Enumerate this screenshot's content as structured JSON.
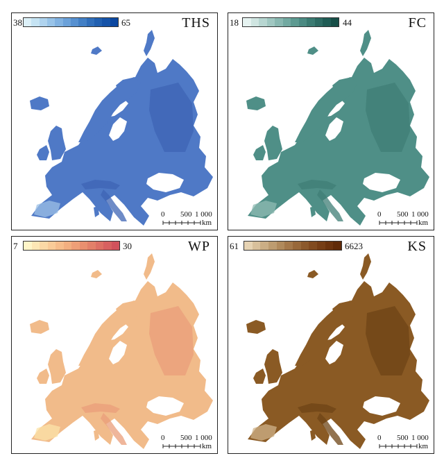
{
  "panels": [
    {
      "title": "THS",
      "legend_min": "38",
      "legend_max": "65",
      "colors": [
        "#dcf0f8",
        "#c5e3f3",
        "#afd3ee",
        "#98c3e8",
        "#81b2e1",
        "#6ba1d9",
        "#5690d0",
        "#427fc5",
        "#306eba",
        "#2160b0",
        "#1553a8",
        "#0b47a0"
      ],
      "map_fill": "#4f79c6",
      "map_dark": "#3d64b4",
      "map_light": "#9cc0e6",
      "scale_ticks": [
        "0",
        "500",
        "1 000"
      ],
      "scale_unit": "km"
    },
    {
      "title": "FC",
      "legend_min": "18",
      "legend_max": "44",
      "colors": [
        "#e6f3f1",
        "#cfe5e1",
        "#b7d6d1",
        "#a0c7c1",
        "#89b8b1",
        "#72a9a1",
        "#5d9a91",
        "#4b8a82",
        "#3b7b72",
        "#2d6b63",
        "#205c55",
        "#164e47"
      ],
      "map_fill": "#4f8f87",
      "map_dark": "#3f7d75",
      "map_light": "#8fbbb3",
      "scale_ticks": [
        "0",
        "500",
        "1 000"
      ],
      "scale_unit": "km"
    },
    {
      "title": "WP",
      "legend_min": "7",
      "legend_max": "30",
      "colors": [
        "#fff5c8",
        "#fde7b5",
        "#fbd9a6",
        "#f9cb98",
        "#f6bd8b",
        "#f2af80",
        "#ee9f77",
        "#e98f6f",
        "#e38069",
        "#dd7064",
        "#d76160",
        "#d1525c"
      ],
      "map_fill": "#f1bb8a",
      "map_dark": "#ea9e7a",
      "map_light": "#fbe3a8",
      "scale_ticks": [
        "0",
        "500",
        "1 000"
      ],
      "scale_unit": "km"
    },
    {
      "title": "KS",
      "legend_min": "61",
      "legend_max": "6623",
      "colors": [
        "#e6d3b3",
        "#d8c09b",
        "#cbae85",
        "#bd9c70",
        "#b08a5c",
        "#a4784a",
        "#98683a",
        "#8c592c",
        "#814b20",
        "#763e16",
        "#6b330e",
        "#602a08"
      ],
      "map_fill": "#8a5a24",
      "map_dark": "#6e4416",
      "map_light": "#cfb38a",
      "scale_ticks": [
        "0",
        "500",
        "1 000"
      ],
      "scale_unit": "km"
    }
  ]
}
